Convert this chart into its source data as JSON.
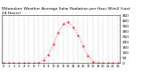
{
  "title": "Milwaukee Weather Average Solar Radiation per Hour W/m2 (Last\n24 Hours)",
  "hours": [
    0,
    1,
    2,
    3,
    4,
    5,
    6,
    7,
    8,
    9,
    10,
    11,
    12,
    13,
    14,
    15,
    16,
    17,
    18,
    19,
    20,
    21,
    22,
    23
  ],
  "values": [
    0,
    0,
    0,
    0,
    0,
    0,
    0,
    2,
    30,
    80,
    180,
    290,
    370,
    390,
    340,
    260,
    160,
    70,
    15,
    1,
    0,
    0,
    0,
    0
  ],
  "line_color": "#ff0000",
  "bg_color": "#ffffff",
  "grid_color": "#bbbbbb",
  "ylim": [
    0,
    450
  ],
  "yticks": [
    0,
    50,
    100,
    150,
    200,
    250,
    300,
    350,
    400,
    450
  ],
  "ylabel_fontsize": 3.0,
  "title_fontsize": 3.2,
  "xlabel_fontsize": 2.5
}
